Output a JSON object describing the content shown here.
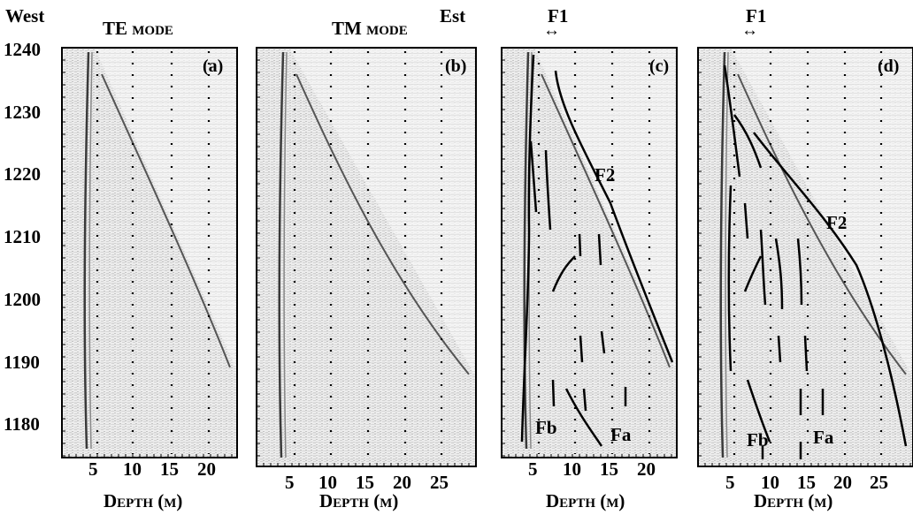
{
  "header": {
    "west": "West",
    "est": "Est",
    "te_mode": "TE mode",
    "tm_mode": "TM mode",
    "f1_c": "F1",
    "f1_d": "F1",
    "arrow": "↔"
  },
  "y_axis": {
    "ticks": [
      "1240",
      "1230",
      "1220",
      "1210",
      "1200",
      "1190",
      "1180"
    ]
  },
  "panels": [
    {
      "tag": "(a)",
      "xlabel": "Depth (m)",
      "xticks": [
        "5",
        "10",
        "15",
        "20"
      ]
    },
    {
      "tag": "(b)",
      "xlabel": "Depth (m)",
      "xticks": [
        "5",
        "10",
        "15",
        "20",
        "25"
      ]
    },
    {
      "tag": "(c)",
      "xlabel": "Depth (m)",
      "xticks": [
        "5",
        "10",
        "15",
        "20"
      ],
      "annotations": {
        "f2": "F2",
        "fa": "Fa",
        "fb": "Fb"
      }
    },
    {
      "tag": "(d)",
      "xlabel": "Depth (m)",
      "xticks": [
        "5",
        "10",
        "15",
        "20",
        "25"
      ],
      "annotations": {
        "f2": "F2",
        "fa": "Fa",
        "fb": "Fb"
      }
    }
  ],
  "colors": {
    "frame": "#000000",
    "radar_bg": "#efefef",
    "radar_dark": "#3a3a3a"
  }
}
